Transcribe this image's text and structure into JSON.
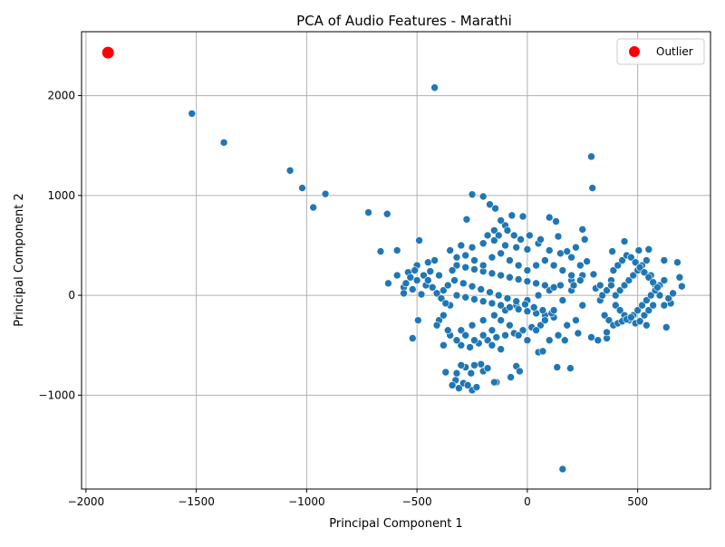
{
  "chart_data": {
    "type": "scatter",
    "title": "PCA of Audio Features - Marathi",
    "xlabel": "Principal Component 1",
    "ylabel": "Principal Component 2",
    "xlim": [
      -2020,
      830
    ],
    "ylim": [
      -1940,
      2640
    ],
    "x_ticks": [
      -2000,
      -1500,
      -1000,
      -500,
      0,
      500
    ],
    "y_ticks": [
      -1000,
      0,
      1000,
      2000
    ],
    "x_tick_labels": [
      "−2000",
      "−1500",
      "−1000",
      "−500",
      "0",
      "500"
    ],
    "y_tick_labels": [
      "−1000",
      "0",
      "1000",
      "2000"
    ],
    "grid": true,
    "legend_position": "top-right",
    "colors": {
      "points": "#1f77b4",
      "outlier": "#ff0000",
      "grid": "#b0b0b0"
    },
    "legend": [
      {
        "label": "Outlier",
        "color": "#ff0000",
        "marker": "circle"
      }
    ],
    "series": [
      {
        "name": "",
        "points": [
          [
            -1520,
            1820
          ],
          [
            -1375,
            1530
          ],
          [
            -1075,
            1250
          ],
          [
            -1020,
            1075
          ],
          [
            -970,
            880
          ],
          [
            -915,
            1015
          ],
          [
            -720,
            830
          ],
          [
            -635,
            815
          ],
          [
            -665,
            440
          ],
          [
            -590,
            450
          ],
          [
            -630,
            120
          ],
          [
            -590,
            200
          ],
          [
            -520,
            -430
          ],
          [
            -495,
            -250
          ],
          [
            -490,
            550
          ],
          [
            -420,
            2080
          ],
          [
            -250,
            1010
          ],
          [
            -200,
            990
          ],
          [
            -275,
            760
          ],
          [
            -170,
            910
          ],
          [
            -145,
            870
          ],
          [
            -70,
            800
          ],
          [
            -20,
            790
          ],
          [
            100,
            780
          ],
          [
            130,
            740
          ],
          [
            250,
            660
          ],
          [
            290,
            1390
          ],
          [
            295,
            1075
          ],
          [
            160,
            -1740
          ],
          [
            135,
            -720
          ],
          [
            195,
            -730
          ],
          [
            50,
            -570
          ],
          [
            70,
            -560
          ],
          [
            -50,
            -710
          ],
          [
            -35,
            -760
          ],
          [
            -75,
            -820
          ],
          [
            -140,
            -870
          ],
          [
            -150,
            -870
          ],
          [
            -310,
            -930
          ],
          [
            -250,
            -950
          ],
          [
            -290,
            -880
          ],
          [
            -325,
            -850
          ],
          [
            -370,
            -770
          ],
          [
            -320,
            -780
          ],
          [
            -255,
            -780
          ],
          [
            -200,
            -760
          ],
          [
            -210,
            -690
          ],
          [
            -180,
            -730
          ],
          [
            -230,
            -920
          ],
          [
            -270,
            -900
          ],
          [
            -340,
            -900
          ],
          [
            -280,
            -720
          ],
          [
            -300,
            -700
          ],
          [
            -240,
            -700
          ],
          [
            360,
            -430
          ],
          [
            320,
            -450
          ],
          [
            290,
            -420
          ],
          [
            360,
            -370
          ],
          [
            630,
            -320
          ],
          [
            540,
            -300
          ],
          [
            650,
            -80
          ],
          [
            690,
            180
          ],
          [
            700,
            90
          ],
          [
            680,
            330
          ],
          [
            620,
            350
          ],
          [
            550,
            460
          ],
          [
            505,
            450
          ],
          [
            440,
            540
          ],
          [
            385,
            440
          ],
          [
            300,
            210
          ],
          [
            310,
            70
          ],
          [
            330,
            100
          ],
          [
            -440,
            240
          ],
          [
            -460,
            100
          ],
          [
            -480,
            10
          ],
          [
            -500,
            150
          ],
          [
            -520,
            60
          ],
          [
            -560,
            80
          ],
          [
            -560,
            20
          ],
          [
            -540,
            230
          ],
          [
            -500,
            300
          ],
          [
            -450,
            330
          ],
          [
            -420,
            350
          ],
          [
            -400,
            200
          ],
          [
            -380,
            50
          ],
          [
            -350,
            -100
          ],
          [
            -400,
            -250
          ],
          [
            -410,
            -300
          ],
          [
            -380,
            -500
          ],
          [
            -350,
            -400
          ],
          [
            -300,
            -350
          ],
          [
            -250,
            -300
          ],
          [
            -200,
            -250
          ],
          [
            -150,
            -200
          ],
          [
            -100,
            -150
          ],
          [
            -50,
            -100
          ],
          [
            0,
            -50
          ],
          [
            50,
            0
          ],
          [
            100,
            50
          ],
          [
            150,
            100
          ],
          [
            200,
            150
          ],
          [
            250,
            200
          ],
          [
            -350,
            450
          ],
          [
            -300,
            500
          ],
          [
            -250,
            480
          ],
          [
            -200,
            520
          ],
          [
            -150,
            550
          ],
          [
            -100,
            500
          ],
          [
            -50,
            480
          ],
          [
            0,
            460
          ],
          [
            50,
            520
          ],
          [
            100,
            450
          ],
          [
            150,
            420
          ],
          [
            200,
            380
          ],
          [
            -320,
            300
          ],
          [
            -280,
            280
          ],
          [
            -240,
            260
          ],
          [
            -200,
            240
          ],
          [
            -160,
            220
          ],
          [
            -120,
            200
          ],
          [
            -80,
            180
          ],
          [
            -40,
            160
          ],
          [
            0,
            140
          ],
          [
            40,
            120
          ],
          [
            80,
            100
          ],
          [
            120,
            80
          ],
          [
            -320,
            0
          ],
          [
            -280,
            -20
          ],
          [
            -240,
            -40
          ],
          [
            -200,
            -60
          ],
          [
            -160,
            -80
          ],
          [
            -120,
            -100
          ],
          [
            -80,
            -120
          ],
          [
            -40,
            -140
          ],
          [
            0,
            -160
          ],
          [
            40,
            -180
          ],
          [
            80,
            -200
          ],
          [
            120,
            -220
          ],
          [
            -330,
            150
          ],
          [
            -290,
            120
          ],
          [
            -250,
            90
          ],
          [
            -210,
            60
          ],
          [
            -170,
            30
          ],
          [
            -130,
            0
          ],
          [
            -90,
            -30
          ],
          [
            -50,
            -60
          ],
          [
            -10,
            -90
          ],
          [
            30,
            -120
          ],
          [
            70,
            -150
          ],
          [
            110,
            -180
          ],
          [
            -300,
            -500
          ],
          [
            -260,
            -520
          ],
          [
            -220,
            -480
          ],
          [
            -180,
            -450
          ],
          [
            -140,
            -420
          ],
          [
            -100,
            -400
          ],
          [
            -60,
            -380
          ],
          [
            -20,
            -350
          ],
          [
            20,
            -320
          ],
          [
            60,
            -300
          ],
          [
            -120,
            -540
          ],
          [
            -160,
            -500
          ],
          [
            400,
            0
          ],
          [
            420,
            50
          ],
          [
            440,
            100
          ],
          [
            460,
            150
          ],
          [
            480,
            200
          ],
          [
            500,
            250
          ],
          [
            520,
            300
          ],
          [
            540,
            350
          ],
          [
            560,
            200
          ],
          [
            580,
            100
          ],
          [
            600,
            0
          ],
          [
            620,
            -100
          ],
          [
            400,
            -100
          ],
          [
            420,
            -150
          ],
          [
            440,
            -200
          ],
          [
            460,
            -250
          ],
          [
            480,
            -200
          ],
          [
            500,
            -150
          ],
          [
            520,
            -100
          ],
          [
            540,
            -50
          ],
          [
            560,
            0
          ],
          [
            580,
            50
          ],
          [
            600,
            100
          ],
          [
            620,
            150
          ],
          [
            380,
            150
          ],
          [
            390,
            250
          ],
          [
            410,
            300
          ],
          [
            430,
            350
          ],
          [
            450,
            400
          ],
          [
            470,
            380
          ],
          [
            490,
            330
          ],
          [
            510,
            280
          ],
          [
            530,
            230
          ],
          [
            550,
            180
          ],
          [
            570,
            130
          ],
          [
            590,
            80
          ],
          [
            350,
            -200
          ],
          [
            370,
            -250
          ],
          [
            390,
            -300
          ],
          [
            410,
            -280
          ],
          [
            430,
            -260
          ],
          [
            450,
            -240
          ],
          [
            470,
            -220
          ],
          [
            490,
            -280
          ],
          [
            510,
            -260
          ],
          [
            530,
            -200
          ],
          [
            550,
            -150
          ],
          [
            570,
            -100
          ],
          [
            330,
            -50
          ],
          [
            340,
            0
          ],
          [
            360,
            50
          ],
          [
            380,
            100
          ],
          [
            640,
            -30
          ],
          [
            660,
            20
          ],
          [
            -550,
            120
          ],
          [
            -530,
            180
          ],
          [
            -510,
            250
          ],
          [
            -470,
            200
          ],
          [
            -450,
            150
          ],
          [
            -430,
            80
          ],
          [
            -410,
            20
          ],
          [
            -390,
            -30
          ],
          [
            -370,
            -80
          ],
          [
            -360,
            100
          ],
          [
            -340,
            250
          ],
          [
            -320,
            380
          ],
          [
            -280,
            400
          ],
          [
            -240,
            350
          ],
          [
            -200,
            300
          ],
          [
            -160,
            380
          ],
          [
            -120,
            420
          ],
          [
            -80,
            350
          ],
          [
            -40,
            300
          ],
          [
            0,
            250
          ],
          [
            40,
            300
          ],
          [
            80,
            350
          ],
          [
            120,
            300
          ],
          [
            160,
            250
          ],
          [
            200,
            200
          ],
          [
            240,
            150
          ],
          [
            200,
            50
          ],
          [
            160,
            -50
          ],
          [
            120,
            -150
          ],
          [
            80,
            -250
          ],
          [
            40,
            -350
          ],
          [
            0,
            -450
          ],
          [
            -40,
            -400
          ],
          [
            -80,
            -300
          ],
          [
            -120,
            -250
          ],
          [
            -160,
            -350
          ],
          [
            -200,
            -400
          ],
          [
            -240,
            -450
          ],
          [
            -280,
            -400
          ],
          [
            -320,
            -450
          ],
          [
            -360,
            -350
          ],
          [
            -380,
            -200
          ],
          [
            -100,
            700
          ],
          [
            -120,
            750
          ],
          [
            -150,
            650
          ],
          [
            -180,
            600
          ],
          [
            -130,
            600
          ],
          [
            -90,
            650
          ],
          [
            -60,
            600
          ],
          [
            -30,
            560
          ],
          [
            10,
            600
          ],
          [
            60,
            560
          ],
          [
            140,
            590
          ],
          [
            180,
            440
          ],
          [
            220,
            480
          ],
          [
            260,
            560
          ],
          [
            270,
            340
          ],
          [
            240,
            300
          ],
          [
            210,
            100
          ],
          [
            250,
            -100
          ],
          [
            220,
            -250
          ],
          [
            180,
            -300
          ],
          [
            140,
            -400
          ],
          [
            100,
            -450
          ],
          [
            170,
            -450
          ],
          [
            230,
            -380
          ]
        ]
      }
    ],
    "outlier": {
      "label": "Outlier",
      "point": [
        -1900,
        2430
      ]
    }
  }
}
